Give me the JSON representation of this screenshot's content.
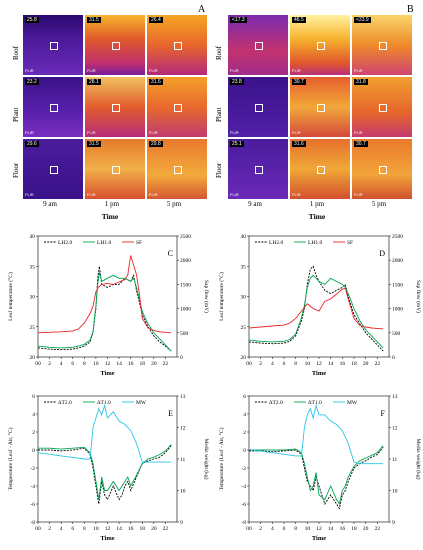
{
  "thermal": {
    "panels": [
      {
        "letter": "A",
        "rows": [
          "Roof",
          "Plant",
          "Floor"
        ],
        "cols": [
          "9 am",
          "1 pm",
          "5 pm"
        ],
        "x_title": "Time",
        "temps": [
          [
            "25.8",
            "31.5",
            "26.4"
          ],
          [
            "23.2",
            "28.1",
            "31.6"
          ],
          [
            "29.6",
            "31.5",
            "29.8"
          ]
        ]
      },
      {
        "letter": "B",
        "rows": [
          "Roof",
          "Plant",
          "Floor"
        ],
        "cols": [
          "9 am",
          "1 pm",
          "5 pm"
        ],
        "x_title": "Time",
        "temps": [
          [
            "<17.3",
            "46.5",
            "<33.9"
          ],
          [
            "23.8",
            "30.7",
            "31.8"
          ],
          [
            "25.1",
            "31.6",
            "30.7"
          ]
        ]
      }
    ],
    "flir_label": "FLIR"
  },
  "chart_data": [
    {
      "id": "C",
      "type": "line",
      "xlabel": "Time",
      "ylabel": "Leaf temperature (°C)",
      "y2label": "Sap flow (mV)",
      "xlim": [
        0,
        24
      ],
      "ylim": [
        20,
        40
      ],
      "y2lim": [
        0,
        2500
      ],
      "xticks": [
        "00",
        "2",
        "4",
        "6",
        "8",
        "10",
        "12",
        "14",
        "16",
        "18",
        "20",
        "22"
      ],
      "yticks": [
        "20",
        "25",
        "30",
        "35",
        "40"
      ],
      "y2ticks": [
        "0",
        "500",
        "1000",
        "1500",
        "2000",
        "2500"
      ],
      "series": [
        {
          "name": "LH2.0",
          "axis": "left",
          "style": "dash",
          "color": "#000000",
          "x": [
            0,
            2,
            4,
            6,
            7,
            8,
            9,
            9.5,
            10,
            10.3,
            10.6,
            11,
            12,
            13,
            14,
            15,
            16,
            16.5,
            17,
            17.5,
            18,
            19,
            20,
            21,
            22,
            23
          ],
          "y": [
            21.5,
            21.3,
            21.2,
            21.3,
            21.5,
            21.8,
            22.5,
            24,
            28,
            33,
            35,
            32,
            31.5,
            32,
            32,
            33,
            32.5,
            33.5,
            31,
            29,
            27,
            25,
            23.5,
            22.5,
            21.8,
            21
          ]
        },
        {
          "name": "LH1.0",
          "axis": "left",
          "style": "solid",
          "color": "#00a651",
          "x": [
            0,
            2,
            4,
            6,
            7,
            8,
            9,
            9.5,
            10,
            10.3,
            10.6,
            11,
            12,
            13,
            14,
            15,
            16,
            16.5,
            17,
            17.5,
            18,
            19,
            20,
            21,
            22,
            23
          ],
          "y": [
            21.8,
            21.6,
            21.5,
            21.6,
            21.8,
            22.1,
            22.8,
            24.2,
            28.5,
            32,
            34,
            32.5,
            33,
            33.5,
            33,
            33,
            32.5,
            33,
            31.5,
            29.5,
            27.5,
            25.5,
            24,
            23,
            22,
            21
          ]
        },
        {
          "name": "SF",
          "axis": "right",
          "style": "solid",
          "color": "#e8252a",
          "x": [
            0,
            2,
            4,
            6,
            7,
            8,
            9,
            9.5,
            10,
            10.5,
            11,
            12,
            13,
            14,
            15,
            15.5,
            16,
            16.5,
            17,
            17.5,
            18,
            19,
            20,
            21,
            22,
            23
          ],
          "y": [
            500,
            510,
            520,
            540,
            580,
            700,
            900,
            1050,
            1350,
            1450,
            1500,
            1520,
            1500,
            1550,
            1600,
            1700,
            2100,
            1900,
            1700,
            1300,
            800,
            600,
            550,
            520,
            510,
            500
          ]
        }
      ]
    },
    {
      "id": "D",
      "type": "line",
      "xlabel": "Time",
      "ylabel": "Leaf temperature (°C)",
      "y2label": "Sap flow (mV)",
      "xlim": [
        0,
        24
      ],
      "ylim": [
        20,
        40
      ],
      "y2lim": [
        0,
        2500
      ],
      "xticks": [
        "00",
        "2",
        "4",
        "6",
        "8",
        "10",
        "12",
        "14",
        "16",
        "18",
        "20",
        "22"
      ],
      "yticks": [
        "20",
        "25",
        "30",
        "35",
        "40"
      ],
      "y2ticks": [
        "0",
        "500",
        "1000",
        "1500",
        "2000",
        "2500"
      ],
      "series": [
        {
          "name": "LH2.0",
          "axis": "left",
          "style": "dash",
          "color": "#000000",
          "x": [
            0,
            2,
            4,
            6,
            7,
            8,
            9,
            9.5,
            10,
            10.5,
            11,
            11.5,
            12,
            13,
            14,
            15,
            16,
            16.5,
            17,
            18,
            19,
            20,
            21,
            22,
            23
          ],
          "y": [
            22.5,
            22.3,
            22.2,
            22.3,
            22.6,
            23.5,
            26,
            28,
            32,
            34.5,
            35,
            33.5,
            32.5,
            31,
            30.5,
            31,
            31.5,
            32,
            30,
            27,
            25.5,
            24,
            23,
            22,
            21
          ]
        },
        {
          "name": "LH1.0",
          "axis": "left",
          "style": "solid",
          "color": "#00a651",
          "x": [
            0,
            2,
            4,
            6,
            7,
            8,
            9,
            9.5,
            10,
            10.5,
            11,
            11.5,
            12,
            13,
            14,
            15,
            16,
            16.5,
            17,
            18,
            19,
            20,
            21,
            22,
            23
          ],
          "y": [
            22.8,
            22.6,
            22.5,
            22.6,
            22.9,
            23.8,
            26.5,
            28.5,
            31.5,
            33,
            33.5,
            33,
            32.5,
            32,
            33,
            32.5,
            32,
            31.5,
            30.5,
            28,
            26,
            24.5,
            23.5,
            22.5,
            21.5
          ]
        },
        {
          "name": "SF",
          "axis": "right",
          "style": "solid",
          "color": "#e8252a",
          "x": [
            0,
            2,
            4,
            6,
            7,
            8,
            9,
            10,
            11,
            12,
            13,
            14,
            15,
            16,
            16.5,
            17,
            18,
            19,
            20,
            21,
            22,
            23
          ],
          "y": [
            600,
            620,
            640,
            660,
            700,
            800,
            950,
            1100,
            1000,
            950,
            1150,
            1200,
            1300,
            1400,
            1420,
            1200,
            800,
            650,
            620,
            600,
            590,
            580
          ]
        }
      ]
    },
    {
      "id": "E",
      "type": "line",
      "xlabel": "Time",
      "ylabel": "Temperature (Leaf - Air, °C)",
      "y2label": "Media weight (kg)",
      "xlim": [
        0,
        24
      ],
      "ylim": [
        -8,
        6
      ],
      "y2lim": [
        9,
        13
      ],
      "xticks": [
        "00",
        "2",
        "4",
        "6",
        "8",
        "10",
        "12",
        "14",
        "16",
        "18",
        "20",
        "22"
      ],
      "yticks": [
        "-8",
        "-6",
        "-4",
        "-2",
        "0",
        "2",
        "4",
        "6"
      ],
      "y2ticks": [
        "9",
        "10",
        "11",
        "12",
        "13"
      ],
      "series": [
        {
          "name": "ΔT2.0",
          "axis": "left",
          "style": "dash",
          "color": "#000000",
          "x": [
            0,
            2,
            4,
            6,
            8,
            9,
            9.5,
            10,
            10.5,
            11,
            11.5,
            12,
            13,
            14,
            14.5,
            15,
            15.5,
            16,
            17,
            18,
            19,
            20,
            21,
            22,
            23
          ],
          "y": [
            0,
            0,
            -0.1,
            0,
            0.2,
            -0.5,
            -2,
            -4,
            -6,
            -3.5,
            -5,
            -5.5,
            -4,
            -5.5,
            -5,
            -4,
            -3.5,
            -4.5,
            -3,
            -1.5,
            -1.2,
            -1,
            -0.8,
            -0.3,
            0.5
          ]
        },
        {
          "name": "ΔT1.0",
          "axis": "left",
          "style": "solid",
          "color": "#00a651",
          "x": [
            0,
            2,
            4,
            6,
            8,
            9,
            9.5,
            10,
            10.5,
            11,
            11.5,
            12,
            13,
            14,
            14.5,
            15,
            15.5,
            16,
            17,
            18,
            19,
            20,
            21,
            22,
            23
          ],
          "y": [
            0.2,
            0.2,
            0.1,
            0.2,
            0.3,
            -0.3,
            -1.5,
            -3.5,
            -5.5,
            -3,
            -4.5,
            -4.5,
            -3.5,
            -4.5,
            -4,
            -3.5,
            -3,
            -4,
            -2.8,
            -1.5,
            -1,
            -0.8,
            -0.5,
            -0.1,
            0.6
          ]
        },
        {
          "name": "MW",
          "axis": "right",
          "style": "solid",
          "color": "#29c5e6",
          "x": [
            0,
            2,
            4,
            6,
            8,
            9,
            9.5,
            10,
            10.5,
            11,
            11.5,
            12,
            13,
            14,
            15,
            16,
            17,
            18,
            19,
            20,
            21,
            22,
            23
          ],
          "y": [
            11.2,
            11.15,
            11.1,
            11.05,
            11.0,
            11.0,
            12.0,
            12.3,
            12.6,
            12.4,
            12.7,
            12.3,
            12.5,
            12.2,
            12.1,
            11.9,
            11.5,
            10.9,
            10.9,
            10.9,
            10.9,
            10.9,
            10.9
          ]
        }
      ]
    },
    {
      "id": "F",
      "type": "line",
      "xlabel": "Time",
      "ylabel": "Temperature (Leaf - Air, °C)",
      "y2label": "Media weight (kg)",
      "xlim": [
        0,
        24
      ],
      "ylim": [
        -8,
        6
      ],
      "y2lim": [
        9,
        13
      ],
      "xticks": [
        "00",
        "2",
        "4",
        "6",
        "8",
        "10",
        "12",
        "14",
        "16",
        "18",
        "20",
        "22"
      ],
      "yticks": [
        "-8",
        "-6",
        "-4",
        "-2",
        "0",
        "2",
        "4",
        "6"
      ],
      "y2ticks": [
        "9",
        "10",
        "11",
        "12",
        "13"
      ],
      "series": [
        {
          "name": "ΔT2.0",
          "axis": "left",
          "style": "dash",
          "color": "#000000",
          "x": [
            0,
            2,
            4,
            6,
            8,
            9,
            9.5,
            10,
            10.5,
            11,
            11.5,
            12,
            13,
            14,
            15,
            15.5,
            16,
            16.5,
            17,
            18,
            19,
            20,
            21,
            22,
            23
          ],
          "y": [
            -0.1,
            -0.1,
            -0.2,
            -0.1,
            0,
            -0.5,
            -2,
            -3.5,
            -4,
            -4.5,
            -3,
            -4,
            -6,
            -5,
            -6,
            -6.5,
            -5,
            -4.5,
            -3.5,
            -2,
            -1.5,
            -1.2,
            -0.8,
            -0.5,
            0.3
          ]
        },
        {
          "name": "ΔT1.0",
          "axis": "left",
          "style": "solid",
          "color": "#00a651",
          "x": [
            0,
            2,
            4,
            6,
            8,
            9,
            9.5,
            10,
            10.5,
            11,
            11.5,
            12,
            13,
            14,
            15,
            15.5,
            16,
            16.5,
            17,
            18,
            19,
            20,
            21,
            22,
            23
          ],
          "y": [
            0,
            0,
            0,
            0,
            0.1,
            -0.3,
            -1.5,
            -3,
            -4.5,
            -4,
            -2.5,
            -5,
            -5.5,
            -4,
            -5.5,
            -6,
            -4.5,
            -4,
            -3,
            -1.8,
            -1.2,
            -0.9,
            -0.6,
            -0.3,
            0.5
          ]
        },
        {
          "name": "MW",
          "axis": "right",
          "style": "solid",
          "color": "#29c5e6",
          "x": [
            0,
            2,
            4,
            6,
            8,
            9,
            9.5,
            10,
            10.5,
            11,
            11.5,
            12,
            13,
            14,
            15,
            16,
            17,
            18,
            19,
            20,
            21,
            22,
            23
          ],
          "y": [
            11.3,
            11.25,
            11.2,
            11.15,
            11.1,
            11.1,
            12.0,
            12.4,
            12.6,
            12.3,
            12.7,
            12.4,
            12.4,
            12.2,
            12.1,
            11.9,
            11.5,
            10.9,
            10.85,
            10.85,
            10.85,
            10.85,
            10.85
          ]
        }
      ]
    }
  ]
}
